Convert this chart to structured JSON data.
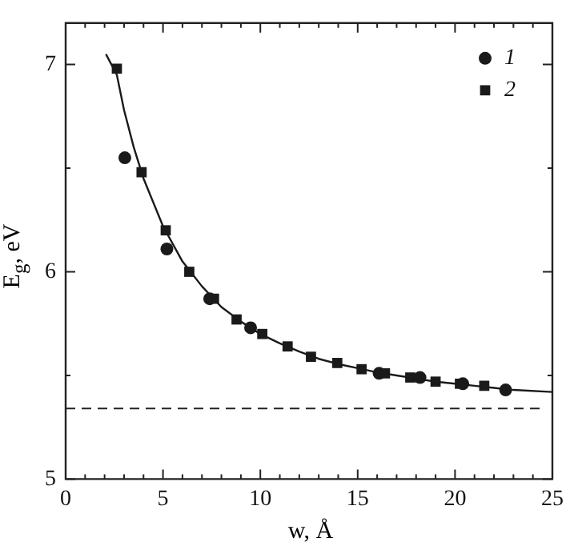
{
  "chart_data": {
    "type": "scatter",
    "xlabel": "w, Å",
    "ylabel": "E$_{g}$, eV",
    "xlim": [
      0,
      25
    ],
    "ylim": [
      5,
      7.2
    ],
    "xticks": [
      0,
      {
        "value": 1,
        "label": null
      },
      {
        "value": 2,
        "label": null
      },
      {
        "value": 3,
        "label": null
      },
      {
        "value": 4,
        "label": null
      },
      5,
      {
        "value": 6,
        "label": null
      },
      {
        "value": 7,
        "label": null
      },
      {
        "value": 8,
        "label": null
      },
      {
        "value": 9,
        "label": null
      },
      10,
      {
        "value": 11,
        "label": null
      },
      {
        "value": 12,
        "label": null
      },
      {
        "value": 13,
        "label": null
      },
      {
        "value": 14,
        "label": null
      },
      15,
      {
        "value": 16,
        "label": null
      },
      {
        "value": 17,
        "label": null
      },
      {
        "value": 18,
        "label": null
      },
      {
        "value": 19,
        "label": null
      },
      20,
      {
        "value": 21,
        "label": null
      },
      {
        "value": 22,
        "label": null
      },
      {
        "value": 23,
        "label": null
      },
      {
        "value": 24,
        "label": null
      },
      25
    ],
    "yticks": [
      5,
      {
        "value": 5.5,
        "label": null
      },
      6,
      {
        "value": 6.5,
        "label": null
      },
      7
    ],
    "grid": false,
    "legend": "top right",
    "ref_lines": [
      {
        "axis": "y",
        "value": 5.34,
        "color": "#222222",
        "line_style": "dashed"
      }
    ],
    "series": [
      {
        "name": "1",
        "color": "#1a1a1a",
        "marker": "circle",
        "x": [
          3.04,
          5.2,
          7.4,
          9.5,
          16.1,
          18.2,
          20.4,
          22.6
        ],
        "values": [
          6.55,
          6.11,
          5.87,
          5.73,
          5.51,
          5.49,
          5.46,
          5.43
        ]
      },
      {
        "name": "2",
        "color": "#1a1a1a",
        "marker": "square",
        "x": [
          2.63,
          3.9,
          5.14,
          6.35,
          7.62,
          8.78,
          10.1,
          11.4,
          12.6,
          13.95,
          15.2,
          16.4,
          17.7,
          19.0,
          20.25,
          21.5
        ],
        "values": [
          6.98,
          6.48,
          6.2,
          6.0,
          5.87,
          5.77,
          5.7,
          5.64,
          5.59,
          5.56,
          5.53,
          5.51,
          5.49,
          5.47,
          5.46,
          5.45
        ]
      },
      {
        "type": "line",
        "color": "#1a1a1a",
        "marker": "none",
        "line_style": "solid",
        "x": [
          2.07,
          2.63,
          3,
          3.5,
          4,
          5,
          6,
          7,
          8,
          9,
          10,
          11,
          12,
          13,
          14,
          15,
          16,
          17,
          18,
          19,
          20,
          21,
          22,
          23,
          25
        ],
        "values": [
          7.05,
          6.95,
          6.78,
          6.6,
          6.45,
          6.22,
          6.05,
          5.93,
          5.83,
          5.76,
          5.7,
          5.655,
          5.615,
          5.58,
          5.555,
          5.535,
          5.515,
          5.5,
          5.485,
          5.47,
          5.46,
          5.45,
          5.44,
          5.43,
          5.42
        ]
      }
    ]
  }
}
